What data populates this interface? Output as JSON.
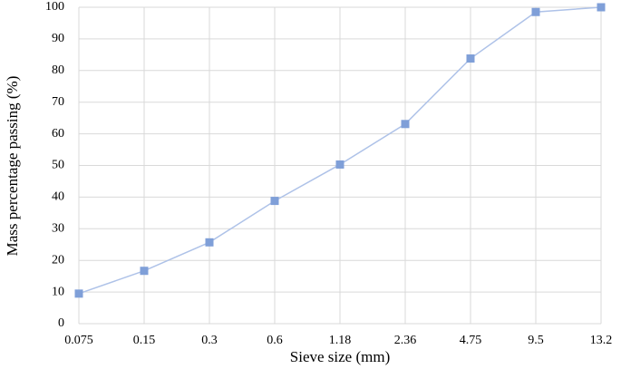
{
  "chart_data": {
    "type": "line",
    "x_label": "Sieve size (mm)",
    "y_label": "Mass  percentage passing (%)",
    "categories": [
      "0.075",
      "0.15",
      "0.3",
      "0.6",
      "1.18",
      "2.36",
      "4.75",
      "9.5",
      "13.2"
    ],
    "values": [
      9.5,
      16.7,
      25.7,
      38.8,
      50.3,
      63.1,
      83.8,
      98.5,
      100
    ],
    "color": "#7f9fd8",
    "line_color": "#aec2e8",
    "ylim": [
      0,
      100
    ],
    "yticks": [
      0,
      10,
      20,
      30,
      40,
      50,
      60,
      70,
      80,
      90,
      100
    ],
    "grid": true
  }
}
